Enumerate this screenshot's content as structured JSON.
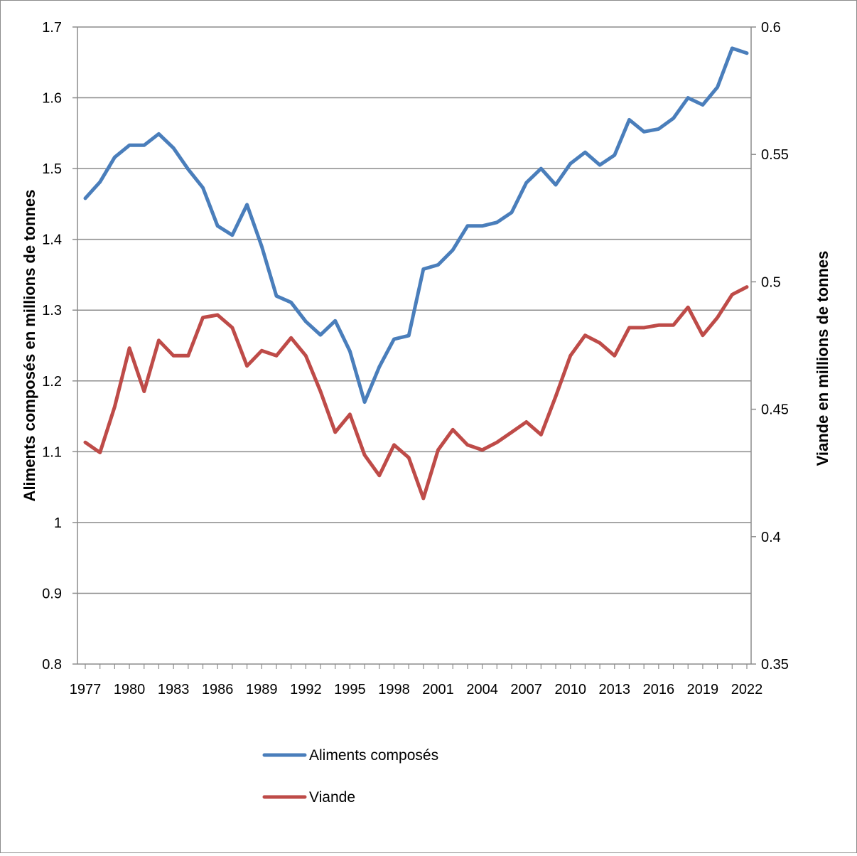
{
  "chart_data": {
    "type": "line",
    "title": "",
    "xlabel": "",
    "ylabel_left": "Aliments composés en millions de tonnes",
    "ylabel_right": "Viande en millions de tonnes",
    "ylim_left": [
      0.8,
      1.7
    ],
    "ylim_right": [
      0.35,
      0.6
    ],
    "yticks_left": [
      "0.8",
      "0.9",
      "1",
      "1.1",
      "1.2",
      "1.3",
      "1.4",
      "1.5",
      "1.6",
      "1.7"
    ],
    "yticks_right": [
      "0.35",
      "0.4",
      "0.45",
      "0.5",
      "0.55",
      "0.6"
    ],
    "xtick_labels": [
      "1977",
      "1980",
      "1983",
      "1986",
      "1989",
      "1992",
      "1995",
      "1998",
      "2001",
      "2004",
      "2007",
      "2010",
      "2013",
      "2016",
      "2019",
      "2022"
    ],
    "grid": true,
    "legend_position": "bottom",
    "x": [
      1977,
      1978,
      1979,
      1980,
      1981,
      1982,
      1983,
      1984,
      1985,
      1986,
      1987,
      1988,
      1989,
      1990,
      1991,
      1992,
      1993,
      1994,
      1995,
      1996,
      1997,
      1998,
      1999,
      2000,
      2001,
      2002,
      2003,
      2004,
      2005,
      2006,
      2007,
      2008,
      2009,
      2010,
      2011,
      2012,
      2013,
      2014,
      2015,
      2016,
      2017,
      2018,
      2019,
      2020,
      2021,
      2022
    ],
    "series": [
      {
        "name": "Aliments composés",
        "axis": "left",
        "color": "#4a7ebb",
        "values": [
          1.458,
          1.481,
          1.516,
          1.533,
          1.533,
          1.549,
          1.529,
          1.499,
          1.473,
          1.419,
          1.406,
          1.449,
          1.39,
          1.32,
          1.311,
          1.284,
          1.265,
          1.285,
          1.242,
          1.17,
          1.22,
          1.259,
          1.264,
          1.358,
          1.364,
          1.385,
          1.419,
          1.419,
          1.424,
          1.438,
          1.48,
          1.5,
          1.477,
          1.507,
          1.523,
          1.505,
          1.519,
          1.569,
          1.552,
          1.556,
          1.571,
          1.6,
          1.59,
          1.615,
          1.67,
          1.663
        ]
      },
      {
        "name": "Viande",
        "axis": "right",
        "color": "#be4b48",
        "values": [
          0.437,
          0.433,
          0.451,
          0.474,
          0.457,
          0.477,
          0.471,
          0.471,
          0.486,
          0.487,
          0.482,
          0.467,
          0.473,
          0.471,
          0.478,
          0.471,
          0.457,
          0.441,
          0.448,
          0.432,
          0.424,
          0.436,
          0.431,
          0.415,
          0.434,
          0.442,
          0.436,
          0.434,
          0.437,
          0.441,
          0.445,
          0.44,
          0.455,
          0.471,
          0.479,
          0.476,
          0.471,
          0.482,
          0.482,
          0.483,
          0.483,
          0.49,
          0.479,
          0.486,
          0.495,
          0.498
        ]
      }
    ]
  }
}
